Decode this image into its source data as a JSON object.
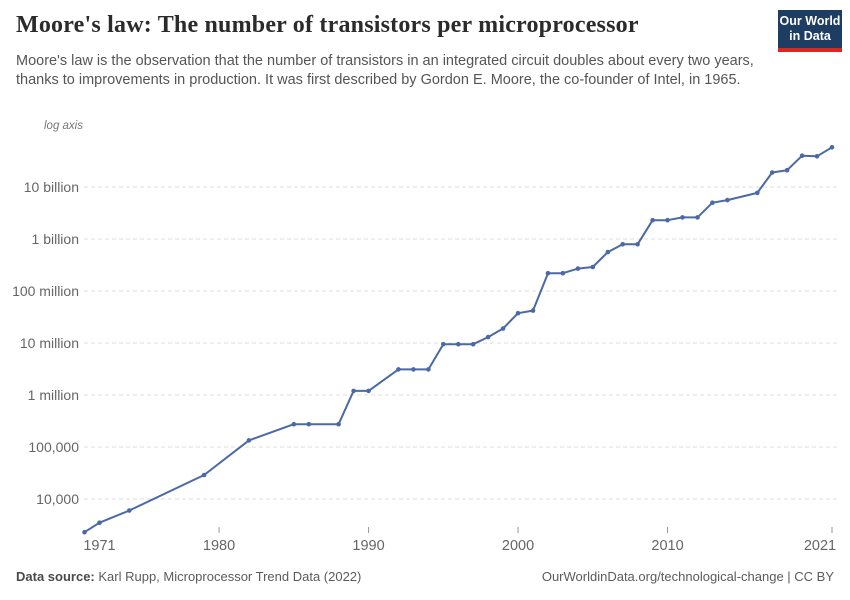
{
  "header": {
    "title": "Moore's law: The number of transistors per microprocessor",
    "subtitle": "Moore's law is the observation that the number of transistors in an integrated circuit doubles about every two years, thanks to improvements in production. It was first described by Gordon E. Moore, the co-founder of Intel, in 1965.",
    "logo": {
      "line1": "Our World",
      "line2": "in Data"
    }
  },
  "colors": {
    "line": "#4a69a5",
    "grid": "#dddddd",
    "tick": "#999999",
    "axis_text": "#666666",
    "title_text": "#2b2b2b",
    "subtitle_text": "#555555",
    "footer_text": "#5b5b5b",
    "logo_bg": "#1d3d63",
    "logo_stripe": "#e02421"
  },
  "chart_data": {
    "type": "line",
    "title": "Moore's law: The number of transistors per microprocessor",
    "grid": "horizontal-dashed",
    "legend": "none",
    "x_axis": {
      "range": [
        1971,
        2021
      ],
      "tick_marks": [
        1980,
        1990,
        2000,
        2010,
        2021
      ],
      "labels": [
        {
          "label": "1971",
          "year": 1971
        },
        {
          "label": "1980",
          "year": 1980
        },
        {
          "label": "1990",
          "year": 1990
        },
        {
          "label": "2000",
          "year": 2000
        },
        {
          "label": "2010",
          "year": 2010
        },
        {
          "label": "2021",
          "year": 2021
        }
      ]
    },
    "y_axis": {
      "scale": "log",
      "note": "log axis",
      "ticks": [
        {
          "value": 10000000000,
          "label": "10 billion"
        },
        {
          "value": 1000000000,
          "label": "1 billion"
        },
        {
          "value": 100000000,
          "label": "100 million"
        },
        {
          "value": 10000000,
          "label": "10 million"
        },
        {
          "value": 1000000,
          "label": "1 million"
        },
        {
          "value": 100000,
          "label": "100,000"
        },
        {
          "value": 10000,
          "label": "10,000"
        }
      ]
    },
    "series": [
      {
        "name": "Transistors per microprocessor",
        "color": "#4a69a5",
        "points": [
          {
            "year": 1971,
            "transistors": 2300
          },
          {
            "year": 1972,
            "transistors": 3500
          },
          {
            "year": 1974,
            "transistors": 6000
          },
          {
            "year": 1979,
            "transistors": 29000
          },
          {
            "year": 1982,
            "transistors": 134000
          },
          {
            "year": 1985,
            "transistors": 275000
          },
          {
            "year": 1986,
            "transistors": 275000
          },
          {
            "year": 1988,
            "transistors": 275000
          },
          {
            "year": 1989,
            "transistors": 1200000
          },
          {
            "year": 1990,
            "transistors": 1200000
          },
          {
            "year": 1992,
            "transistors": 3100000
          },
          {
            "year": 1993,
            "transistors": 3100000
          },
          {
            "year": 1994,
            "transistors": 3100000
          },
          {
            "year": 1995,
            "transistors": 9500000
          },
          {
            "year": 1996,
            "transistors": 9500000
          },
          {
            "year": 1997,
            "transistors": 9500000
          },
          {
            "year": 1998,
            "transistors": 13000000
          },
          {
            "year": 1999,
            "transistors": 19000000
          },
          {
            "year": 2000,
            "transistors": 37500000
          },
          {
            "year": 2001,
            "transistors": 42000000
          },
          {
            "year": 2002,
            "transistors": 220000000
          },
          {
            "year": 2003,
            "transistors": 220000000
          },
          {
            "year": 2004,
            "transistors": 270000000
          },
          {
            "year": 2005,
            "transistors": 290000000
          },
          {
            "year": 2006,
            "transistors": 560000000
          },
          {
            "year": 2007,
            "transistors": 790000000
          },
          {
            "year": 2008,
            "transistors": 790000000
          },
          {
            "year": 2009,
            "transistors": 2300000000
          },
          {
            "year": 2010,
            "transistors": 2300000000
          },
          {
            "year": 2011,
            "transistors": 2600000000
          },
          {
            "year": 2012,
            "transistors": 2600000000
          },
          {
            "year": 2013,
            "transistors": 5000000000
          },
          {
            "year": 2014,
            "transistors": 5600000000
          },
          {
            "year": 2016,
            "transistors": 7700000000
          },
          {
            "year": 2017,
            "transistors": 19000000000
          },
          {
            "year": 2018,
            "transistors": 21000000000
          },
          {
            "year": 2019,
            "transistors": 40000000000
          },
          {
            "year": 2020,
            "transistors": 39000000000
          },
          {
            "year": 2021,
            "transistors": 58000000000
          }
        ]
      }
    ]
  },
  "footer": {
    "datasource_label": "Data source:",
    "datasource_text": " Karl Rupp, Microprocessor Trend Data (2022)",
    "credit": "OurWorldinData.org/technological-change | CC BY"
  }
}
